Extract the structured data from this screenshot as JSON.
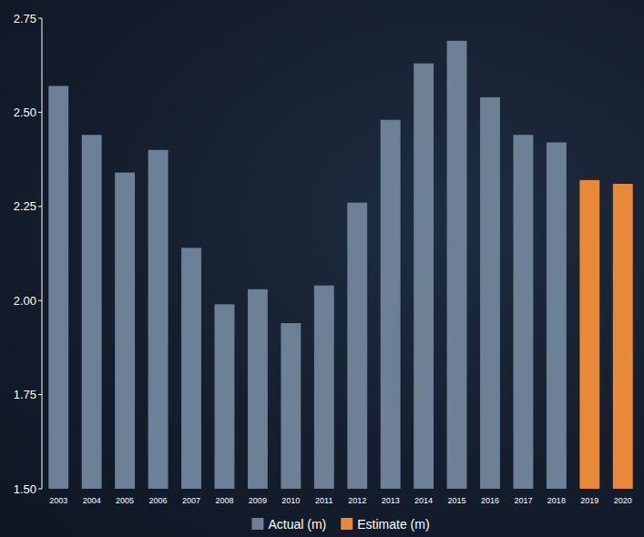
{
  "chart_data": {
    "type": "bar",
    "categories": [
      "2003",
      "2004",
      "2005",
      "2006",
      "2007",
      "2008",
      "2009",
      "2010",
      "2011",
      "2012",
      "2013",
      "2014",
      "2015",
      "2016",
      "2017",
      "2018",
      "2019",
      "2020"
    ],
    "series": [
      {
        "name": "Actual (m)",
        "color": "#6e8096",
        "values": [
          2.57,
          2.44,
          2.34,
          2.4,
          2.14,
          1.99,
          2.03,
          1.94,
          2.04,
          2.26,
          2.48,
          2.63,
          2.69,
          2.54,
          2.44,
          2.42,
          null,
          null
        ]
      },
      {
        "name": "Estimate (m)",
        "color": "#e8893a",
        "values": [
          null,
          null,
          null,
          null,
          null,
          null,
          null,
          null,
          null,
          null,
          null,
          null,
          null,
          null,
          null,
          null,
          2.32,
          2.31
        ]
      }
    ],
    "ylim": [
      1.5,
      2.75
    ],
    "yticks": [
      {
        "value": 1.5,
        "label": "1.50"
      },
      1.75,
      {
        "value": 2.0,
        "label": "2.00"
      },
      2.25,
      {
        "value": 2.5,
        "label": "2.50"
      },
      2.75
    ],
    "grid": false,
    "stacked": true,
    "legend": "bottom"
  }
}
